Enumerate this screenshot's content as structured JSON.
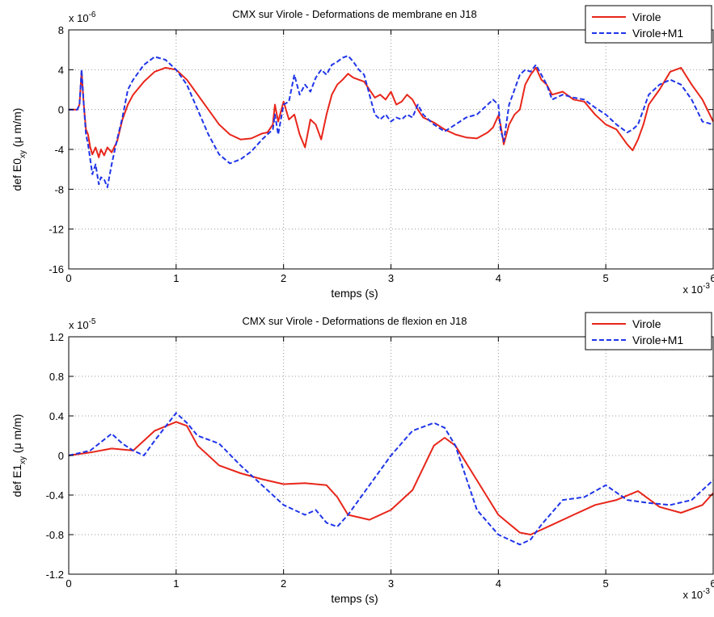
{
  "chart_data": [
    {
      "type": "line",
      "title": "CMX sur Virole - Deformations de membrane en J18",
      "xlabel": "temps (s)",
      "x_exponent": "x 10",
      "x_exponent_power": "-3",
      "ylabel_main": "def E0",
      "ylabel_sub": "xy",
      "ylabel_unit": " (μ m/m)",
      "y_exponent": "x 10",
      "y_exponent_power": "-6",
      "xlim": [
        0,
        6
      ],
      "ylim": [
        -16,
        8
      ],
      "xticks": [
        0,
        1,
        2,
        3,
        4,
        5,
        6
      ],
      "xtick_labels": [
        "0",
        "1",
        "2",
        "3",
        "4",
        "5",
        "6"
      ],
      "yticks": [
        8,
        4,
        0,
        -4,
        -8,
        -12,
        -16
      ],
      "ytick_labels": [
        "8",
        "4",
        "0",
        "-4",
        "-8",
        "-12",
        "-16"
      ],
      "grid": true,
      "legend_position": "top-right",
      "series": [
        {
          "name": "Virole",
          "color": "#e8261a",
          "style": "solid",
          "x": [
            0,
            0.08,
            0.1,
            0.12,
            0.14,
            0.16,
            0.18,
            0.2,
            0.22,
            0.25,
            0.28,
            0.3,
            0.33,
            0.36,
            0.4,
            0.45,
            0.5,
            0.55,
            0.6,
            0.7,
            0.8,
            0.9,
            1.0,
            1.1,
            1.2,
            1.3,
            1.4,
            1.5,
            1.6,
            1.7,
            1.8,
            1.85,
            1.9,
            1.92,
            1.95,
            2.0,
            2.05,
            2.1,
            2.15,
            2.2,
            2.25,
            2.3,
            2.35,
            2.4,
            2.45,
            2.5,
            2.55,
            2.6,
            2.65,
            2.7,
            2.75,
            2.8,
            2.85,
            2.9,
            2.95,
            3.0,
            3.05,
            3.1,
            3.15,
            3.2,
            3.25,
            3.3,
            3.4,
            3.5,
            3.6,
            3.7,
            3.8,
            3.9,
            3.95,
            4.0,
            4.02,
            4.05,
            4.1,
            4.15,
            4.2,
            4.25,
            4.3,
            4.35,
            4.4,
            4.45,
            4.5,
            4.6,
            4.7,
            4.8,
            4.9,
            5.0,
            5.1,
            5.2,
            5.25,
            5.3,
            5.35,
            5.4,
            5.5,
            5.6,
            5.7,
            5.8,
            5.9,
            6.0
          ],
          "y": [
            0,
            0,
            0.5,
            3.8,
            0.5,
            -2.0,
            -2.5,
            -3.8,
            -4.5,
            -3.8,
            -4.8,
            -4.0,
            -4.6,
            -3.8,
            -4.3,
            -3.2,
            -1.0,
            0.5,
            1.5,
            2.8,
            3.8,
            4.2,
            4.0,
            3.0,
            1.5,
            0.0,
            -1.5,
            -2.5,
            -3.0,
            -2.9,
            -2.4,
            -2.3,
            -1.5,
            0.5,
            -1.2,
            0.8,
            -1.0,
            -0.5,
            -2.5,
            -3.8,
            -1.0,
            -1.5,
            -3.0,
            -0.5,
            1.5,
            2.5,
            3.0,
            3.6,
            3.2,
            3.0,
            2.8,
            2.0,
            1.2,
            1.5,
            1.0,
            1.8,
            0.5,
            0.8,
            1.5,
            1.0,
            0.0,
            -0.8,
            -1.3,
            -2.0,
            -2.5,
            -2.8,
            -2.9,
            -2.3,
            -1.8,
            -0.6,
            -1.5,
            -3.5,
            -1.5,
            -0.5,
            0.0,
            2.5,
            3.5,
            4.2,
            3.0,
            2.5,
            1.5,
            1.8,
            1.0,
            0.8,
            -0.5,
            -1.5,
            -2.0,
            -3.5,
            -4.1,
            -3.0,
            -1.5,
            0.5,
            2.0,
            3.8,
            4.2,
            2.5,
            1.0,
            -1.2
          ]
        },
        {
          "name": "Virole+M1",
          "color": "#1f35e8",
          "style": "dashed",
          "x": [
            0,
            0.08,
            0.1,
            0.12,
            0.14,
            0.16,
            0.18,
            0.2,
            0.22,
            0.25,
            0.28,
            0.3,
            0.33,
            0.36,
            0.4,
            0.45,
            0.5,
            0.55,
            0.6,
            0.7,
            0.8,
            0.9,
            1.0,
            1.1,
            1.2,
            1.3,
            1.4,
            1.5,
            1.6,
            1.7,
            1.8,
            1.85,
            1.9,
            1.92,
            1.95,
            2.0,
            2.05,
            2.1,
            2.15,
            2.2,
            2.25,
            2.3,
            2.35,
            2.4,
            2.45,
            2.5,
            2.55,
            2.6,
            2.65,
            2.7,
            2.75,
            2.8,
            2.85,
            2.9,
            2.95,
            3.0,
            3.05,
            3.1,
            3.15,
            3.2,
            3.25,
            3.3,
            3.4,
            3.5,
            3.6,
            3.7,
            3.8,
            3.9,
            3.95,
            4.0,
            4.02,
            4.05,
            4.1,
            4.15,
            4.2,
            4.25,
            4.3,
            4.35,
            4.4,
            4.45,
            4.5,
            4.6,
            4.7,
            4.8,
            4.9,
            5.0,
            5.1,
            5.2,
            5.25,
            5.3,
            5.35,
            5.4,
            5.5,
            5.6,
            5.7,
            5.8,
            5.9,
            6.0
          ],
          "y": [
            0,
            0,
            0.5,
            4.0,
            0.5,
            -2.5,
            -3.5,
            -5.0,
            -6.5,
            -5.5,
            -7.5,
            -6.8,
            -7.0,
            -7.8,
            -5.5,
            -3.0,
            -0.8,
            2.0,
            3.0,
            4.5,
            5.3,
            5.0,
            4.0,
            2.5,
            0.0,
            -2.5,
            -4.5,
            -5.4,
            -5.0,
            -4.2,
            -3.0,
            -2.5,
            -2.0,
            -0.5,
            -2.5,
            0.5,
            0.8,
            3.5,
            1.5,
            2.5,
            1.8,
            3.2,
            4.0,
            3.5,
            4.5,
            4.8,
            5.2,
            5.4,
            4.8,
            4.0,
            3.5,
            1.5,
            -0.5,
            -1.0,
            -0.5,
            -1.2,
            -0.8,
            -1.0,
            -0.5,
            -0.8,
            0.5,
            -0.5,
            -1.5,
            -2.2,
            -1.5,
            -0.8,
            -0.5,
            0.5,
            1.0,
            0.5,
            -2.0,
            -3.2,
            0.5,
            2.0,
            3.5,
            4.0,
            3.8,
            4.5,
            3.5,
            2.5,
            1.0,
            1.5,
            1.2,
            1.0,
            0.2,
            -0.5,
            -1.5,
            -2.3,
            -2.0,
            -1.5,
            0.0,
            1.5,
            2.5,
            3.0,
            2.5,
            1.0,
            -1.2,
            -1.5
          ]
        }
      ]
    },
    {
      "type": "line",
      "title": "CMX sur Virole - Deformations de flexion en J18",
      "xlabel": "temps (s)",
      "x_exponent": "x 10",
      "x_exponent_power": "-3",
      "ylabel_main": "def E1",
      "ylabel_sub": "xy",
      "ylabel_unit": " (μ m/m)",
      "y_exponent": "x 10",
      "y_exponent_power": "-5",
      "xlim": [
        0,
        6
      ],
      "ylim": [
        -1.2,
        1.2
      ],
      "xticks": [
        0,
        1,
        2,
        3,
        4,
        5,
        6
      ],
      "xtick_labels": [
        "0",
        "1",
        "2",
        "3",
        "4",
        "5",
        "6"
      ],
      "yticks": [
        1.2,
        0.8,
        0.4,
        0,
        -0.4,
        -0.8,
        -1.2
      ],
      "ytick_labels": [
        "1.2",
        "0.8",
        "0.4",
        "0",
        "-0.4",
        "-0.8",
        "-1.2"
      ],
      "grid": true,
      "legend_position": "top-right",
      "series": [
        {
          "name": "Virole",
          "color": "#e8261a",
          "style": "solid",
          "x": [
            0,
            0.2,
            0.4,
            0.6,
            0.8,
            1.0,
            1.1,
            1.2,
            1.4,
            1.6,
            1.8,
            2.0,
            2.2,
            2.4,
            2.5,
            2.6,
            2.8,
            3.0,
            3.2,
            3.4,
            3.5,
            3.6,
            3.8,
            4.0,
            4.2,
            4.3,
            4.5,
            4.7,
            4.9,
            5.1,
            5.3,
            5.5,
            5.7,
            5.9,
            6.0
          ],
          "y": [
            0,
            0.03,
            0.07,
            0.05,
            0.25,
            0.34,
            0.3,
            0.1,
            -0.1,
            -0.18,
            -0.24,
            -0.29,
            -0.28,
            -0.3,
            -0.42,
            -0.6,
            -0.65,
            -0.55,
            -0.35,
            0.1,
            0.18,
            0.1,
            -0.25,
            -0.6,
            -0.78,
            -0.8,
            -0.7,
            -0.6,
            -0.5,
            -0.45,
            -0.36,
            -0.52,
            -0.58,
            -0.5,
            -0.38
          ]
        },
        {
          "name": "Virole+M1",
          "color": "#1f35e8",
          "style": "dashed",
          "x": [
            0,
            0.2,
            0.4,
            0.5,
            0.6,
            0.7,
            0.8,
            1.0,
            1.1,
            1.2,
            1.4,
            1.6,
            1.8,
            2.0,
            2.2,
            2.3,
            2.4,
            2.5,
            2.6,
            2.8,
            3.0,
            3.2,
            3.4,
            3.5,
            3.6,
            3.8,
            4.0,
            4.2,
            4.3,
            4.4,
            4.6,
            4.8,
            5.0,
            5.2,
            5.4,
            5.6,
            5.8,
            6.0
          ],
          "y": [
            0,
            0.05,
            0.22,
            0.12,
            0.05,
            0.0,
            0.15,
            0.43,
            0.33,
            0.2,
            0.12,
            -0.1,
            -0.3,
            -0.5,
            -0.6,
            -0.55,
            -0.68,
            -0.72,
            -0.6,
            -0.3,
            0.0,
            0.25,
            0.33,
            0.28,
            0.1,
            -0.55,
            -0.8,
            -0.9,
            -0.85,
            -0.7,
            -0.45,
            -0.42,
            -0.3,
            -0.45,
            -0.48,
            -0.5,
            -0.45,
            -0.25
          ]
        }
      ]
    }
  ]
}
